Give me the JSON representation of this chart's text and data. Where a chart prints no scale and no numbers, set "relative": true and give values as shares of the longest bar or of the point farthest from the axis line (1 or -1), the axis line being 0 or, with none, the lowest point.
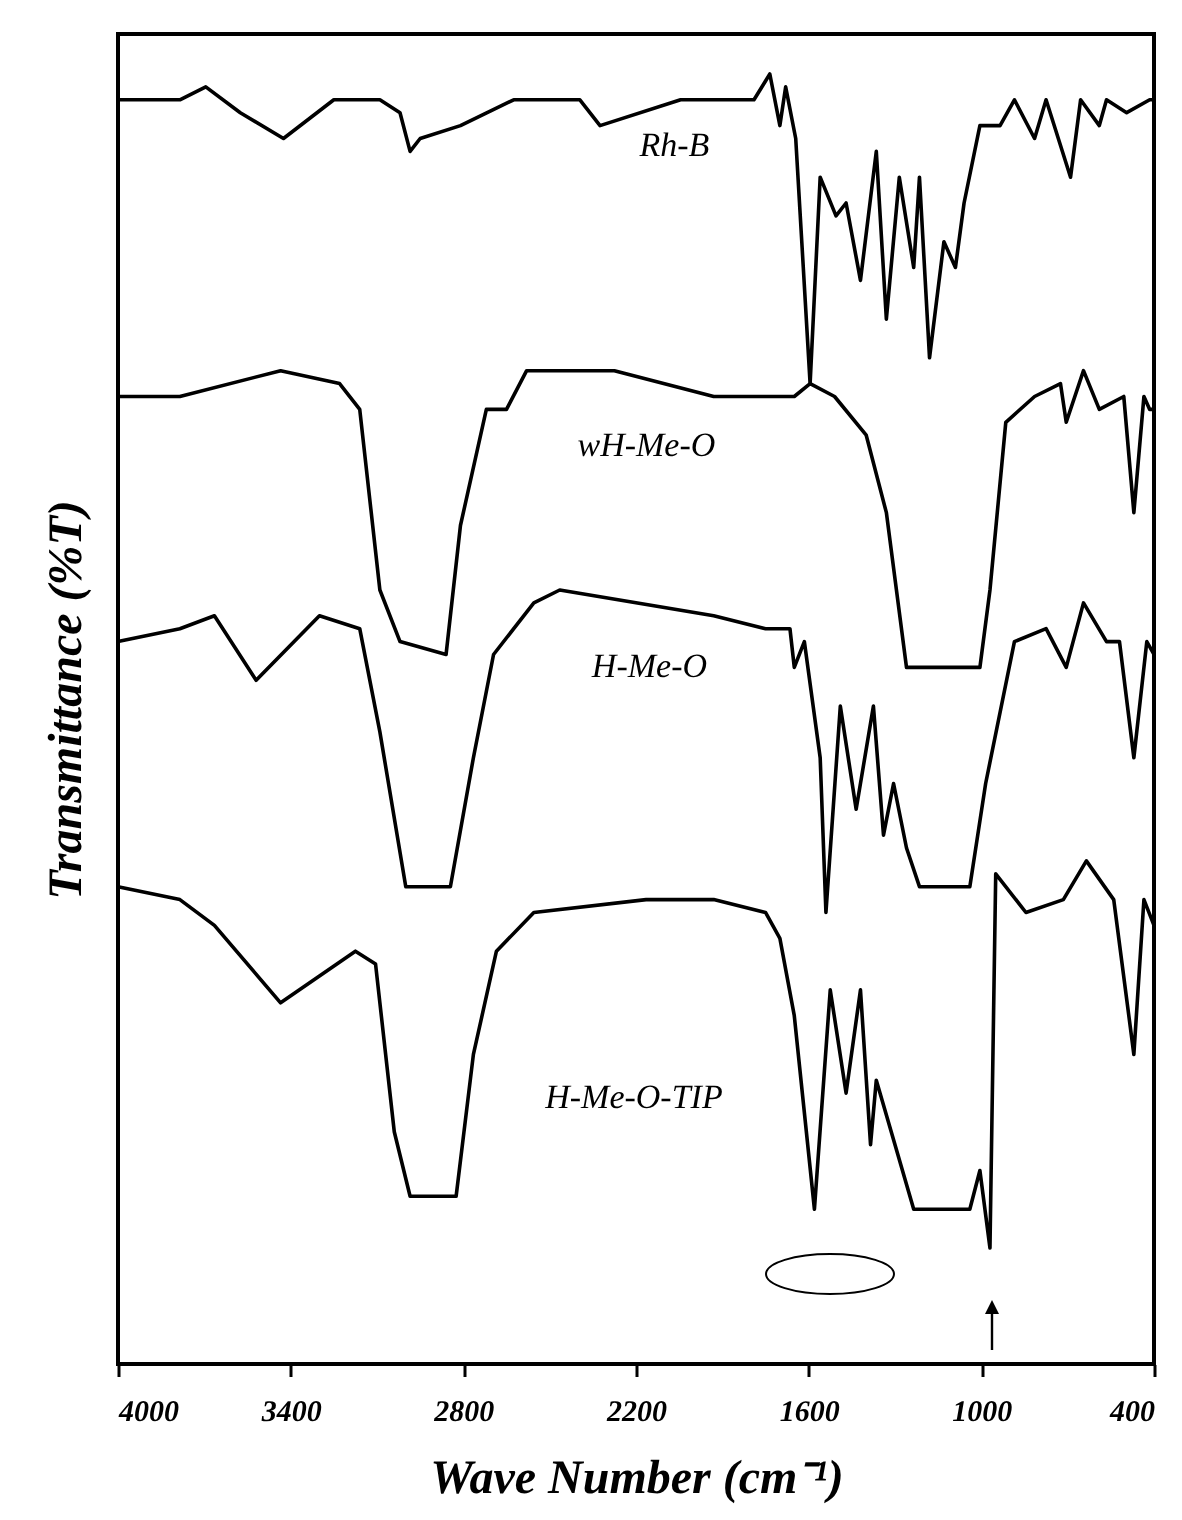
{
  "chart_data": {
    "type": "line",
    "xlabel": "Wave Number  (cm⁻¹)",
    "ylabel": "Transmittance  (%T)",
    "relative": true,
    "xlim": [
      4000,
      400
    ],
    "xticks": [
      4000,
      3400,
      2800,
      2200,
      1600,
      1000,
      400
    ],
    "grid": false,
    "line_style": "solid",
    "marker": "none",
    "series": [
      {
        "name": "Rh-B",
        "color": "#000000",
        "x": [
          4000,
          3785,
          3695,
          3575,
          3425,
          3250,
          3090,
          3020,
          2985,
          2950,
          2810,
          2625,
          2395,
          2325,
          2045,
          1790,
          1735,
          1700,
          1680,
          1645,
          1595,
          1560,
          1505,
          1470,
          1420,
          1365,
          1330,
          1285,
          1235,
          1215,
          1180,
          1130,
          1090,
          1060,
          1005,
          935,
          885,
          815,
          775,
          690,
          655,
          590,
          565,
          495,
          415,
          400
        ],
        "values": [
          0.98,
          0.98,
          0.99,
          0.97,
          0.95,
          0.98,
          0.98,
          0.97,
          0.94,
          0.95,
          0.96,
          0.98,
          0.98,
          0.96,
          0.98,
          0.98,
          1.0,
          0.96,
          0.99,
          0.95,
          0.76,
          0.92,
          0.89,
          0.9,
          0.84,
          0.94,
          0.81,
          0.92,
          0.85,
          0.92,
          0.78,
          0.87,
          0.85,
          0.9,
          0.96,
          0.96,
          0.98,
          0.95,
          0.98,
          0.92,
          0.98,
          0.96,
          0.98,
          0.97,
          0.98,
          0.98
        ]
      },
      {
        "name": "wH-Me-O",
        "color": "#000000",
        "x": [
          4000,
          3785,
          3435,
          3230,
          3160,
          3090,
          3020,
          2860,
          2810,
          2720,
          2650,
          2580,
          2275,
          1930,
          1650,
          1595,
          1510,
          1400,
          1330,
          1260,
          1005,
          970,
          915,
          815,
          725,
          705,
          645,
          590,
          505,
          470,
          435,
          415,
          400
        ],
        "values": [
          0.75,
          0.75,
          0.77,
          0.76,
          0.74,
          0.6,
          0.56,
          0.55,
          0.65,
          0.74,
          0.74,
          0.77,
          0.77,
          0.75,
          0.75,
          0.76,
          0.75,
          0.72,
          0.66,
          0.54,
          0.54,
          0.6,
          0.73,
          0.75,
          0.76,
          0.73,
          0.77,
          0.74,
          0.75,
          0.66,
          0.75,
          0.74,
          0.74
        ]
      },
      {
        "name": "H-Me-O",
        "color": "#000000",
        "x": [
          4000,
          3785,
          3665,
          3520,
          3300,
          3160,
          3090,
          3000,
          2845,
          2765,
          2695,
          2555,
          2465,
          1930,
          1750,
          1665,
          1650,
          1615,
          1560,
          1540,
          1490,
          1435,
          1375,
          1340,
          1305,
          1260,
          1215,
          1040,
          985,
          885,
          775,
          705,
          645,
          565,
          520,
          470,
          425,
          400
        ],
        "values": [
          0.56,
          0.57,
          0.58,
          0.53,
          0.58,
          0.57,
          0.49,
          0.37,
          0.37,
          0.47,
          0.55,
          0.59,
          0.6,
          0.58,
          0.57,
          0.57,
          0.54,
          0.56,
          0.47,
          0.35,
          0.51,
          0.43,
          0.51,
          0.41,
          0.45,
          0.4,
          0.37,
          0.37,
          0.45,
          0.56,
          0.57,
          0.54,
          0.59,
          0.56,
          0.56,
          0.47,
          0.56,
          0.55
        ]
      },
      {
        "name": "H-Me-O-TIP",
        "color": "#000000",
        "x": [
          4000,
          3785,
          3665,
          3435,
          3175,
          3105,
          3040,
          2985,
          2825,
          2765,
          2685,
          2555,
          2165,
          1930,
          1750,
          1700,
          1650,
          1580,
          1525,
          1470,
          1420,
          1385,
          1365,
          1235,
          1040,
          1005,
          970,
          950,
          845,
          715,
          635,
          540,
          470,
          435,
          400
        ],
        "values": [
          0.37,
          0.36,
          0.34,
          0.28,
          0.32,
          0.31,
          0.18,
          0.13,
          0.13,
          0.24,
          0.32,
          0.35,
          0.36,
          0.36,
          0.35,
          0.33,
          0.27,
          0.12,
          0.29,
          0.21,
          0.29,
          0.17,
          0.22,
          0.12,
          0.12,
          0.15,
          0.09,
          0.38,
          0.35,
          0.36,
          0.39,
          0.36,
          0.24,
          0.36,
          0.34
        ]
      }
    ]
  }
}
